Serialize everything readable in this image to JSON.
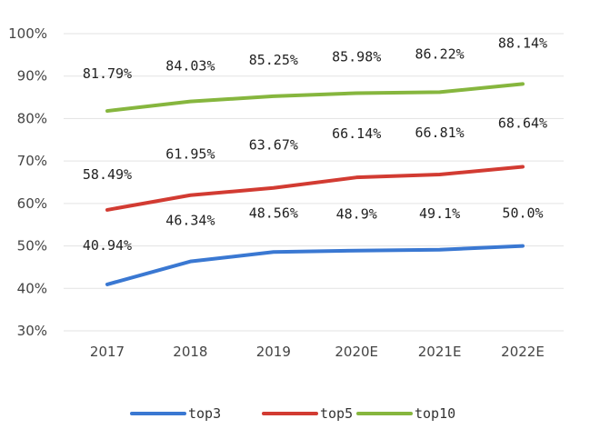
{
  "chart_data": {
    "type": "line",
    "categories": [
      "2017",
      "2018",
      "2019",
      "2020E",
      "2021E",
      "2022E"
    ],
    "series": [
      {
        "name": "top3",
        "color": "#3a78d2",
        "values": [
          40.94,
          46.34,
          48.56,
          48.9,
          49.1,
          50.0
        ],
        "labels": [
          "40.94%",
          "46.34%",
          "48.56%",
          "48.9%",
          "49.1%",
          "50.0%"
        ]
      },
      {
        "name": "top5",
        "color": "#d23b32",
        "values": [
          58.49,
          61.95,
          63.67,
          66.14,
          66.81,
          68.64
        ],
        "labels": [
          "58.49%",
          "61.95%",
          "63.67%",
          "66.14%",
          "66.81%",
          "68.64%"
        ]
      },
      {
        "name": "top10",
        "color": "#86b63e",
        "values": [
          81.79,
          84.03,
          85.25,
          85.98,
          86.22,
          88.14
        ],
        "labels": [
          "81.79%",
          "84.03%",
          "85.25%",
          "85.98%",
          "86.22%",
          "88.14%"
        ]
      }
    ],
    "y_ticks": [
      "30%",
      "40%",
      "50%",
      "60%",
      "70%",
      "80%",
      "90%",
      "100%"
    ],
    "ylim": [
      30,
      100
    ],
    "grid": true,
    "legend": "bottom"
  }
}
